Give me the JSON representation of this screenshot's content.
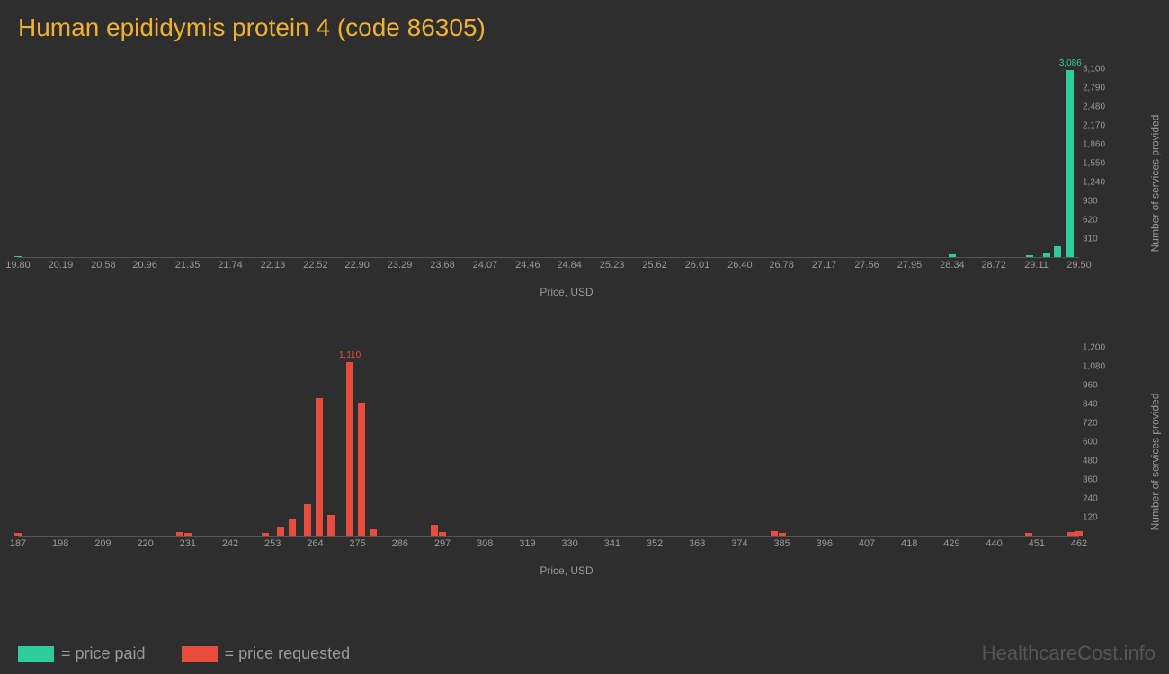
{
  "title": "Human epididymis protein 4 (code 86305)",
  "colors": {
    "background": "#2e2e2e",
    "title": "#f0b030",
    "paid": "#2ecc9a",
    "requested": "#e74c3c",
    "axis_text": "#999999",
    "watermark": "#555555"
  },
  "chart_paid": {
    "type": "bar",
    "xlim": [
      19.8,
      29.5
    ],
    "ylim": [
      0,
      3100
    ],
    "x_ticks": [
      "19.80",
      "20.19",
      "20.58",
      "20.96",
      "21.35",
      "21.74",
      "22.13",
      "22.52",
      "22.90",
      "23.29",
      "23.68",
      "24.07",
      "24.46",
      "24.84",
      "25.23",
      "25.62",
      "26.01",
      "26.40",
      "26.78",
      "27.17",
      "27.56",
      "27.95",
      "28.34",
      "28.72",
      "29.11",
      "29.50"
    ],
    "y_ticks": [
      310,
      620,
      930,
      1240,
      1550,
      1860,
      2170,
      2480,
      2790,
      3100
    ],
    "x_label": "Price, USD",
    "y_label": "Number of services provided",
    "bars": [
      {
        "x": 19.8,
        "y": 18
      },
      {
        "x": 28.34,
        "y": 40
      },
      {
        "x": 29.05,
        "y": 25
      },
      {
        "x": 29.2,
        "y": 60
      },
      {
        "x": 29.3,
        "y": 180
      },
      {
        "x": 29.42,
        "y": 3086,
        "label": "3,086"
      }
    ]
  },
  "chart_requested": {
    "type": "bar",
    "xlim": [
      187,
      462
    ],
    "ylim": [
      0,
      1200
    ],
    "x_ticks": [
      "187",
      "198",
      "209",
      "220",
      "231",
      "242",
      "253",
      "264",
      "275",
      "286",
      "297",
      "308",
      "319",
      "330",
      "341",
      "352",
      "363",
      "374",
      "385",
      "396",
      "407",
      "418",
      "429",
      "440",
      "451",
      "462"
    ],
    "y_ticks": [
      120,
      240,
      360,
      480,
      600,
      720,
      840,
      960,
      1080,
      1200
    ],
    "x_label": "Price, USD",
    "y_label": "Number of services provided",
    "bars": [
      {
        "x": 187,
        "y": 20
      },
      {
        "x": 229,
        "y": 25
      },
      {
        "x": 231,
        "y": 15
      },
      {
        "x": 251,
        "y": 20
      },
      {
        "x": 255,
        "y": 60
      },
      {
        "x": 258,
        "y": 110
      },
      {
        "x": 262,
        "y": 200
      },
      {
        "x": 265,
        "y": 880
      },
      {
        "x": 268,
        "y": 130
      },
      {
        "x": 273,
        "y": 1110,
        "label": "1,110"
      },
      {
        "x": 276,
        "y": 850
      },
      {
        "x": 279,
        "y": 40
      },
      {
        "x": 295,
        "y": 70
      },
      {
        "x": 297,
        "y": 25
      },
      {
        "x": 383,
        "y": 30
      },
      {
        "x": 385,
        "y": 20
      },
      {
        "x": 449,
        "y": 15
      },
      {
        "x": 460,
        "y": 25
      },
      {
        "x": 462,
        "y": 30
      }
    ]
  },
  "legend": {
    "paid": "= price paid",
    "requested": "= price requested"
  },
  "watermark": "HealthcareCost.info"
}
